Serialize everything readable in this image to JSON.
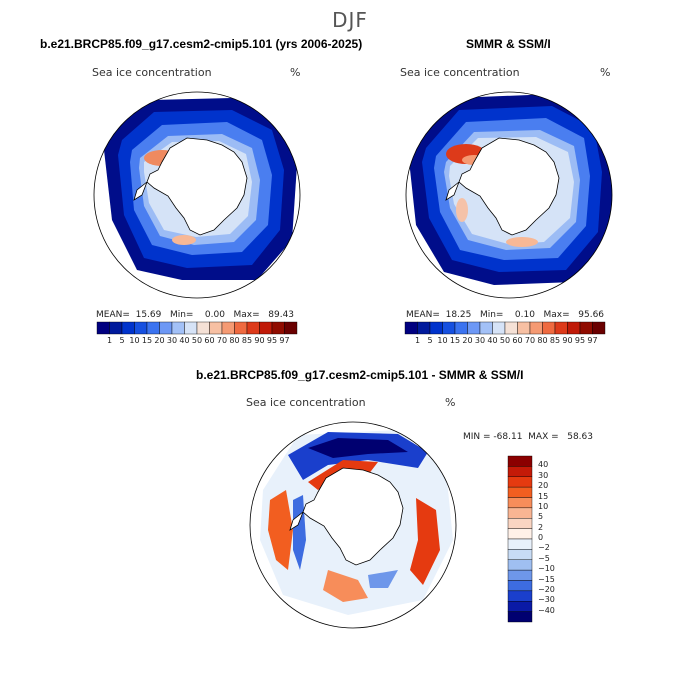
{
  "figure": {
    "title": "DJF"
  },
  "panels": [
    {
      "title": "b.e21.BRCP85.f09_g17.cesm2-cmip5.101 (yrs 2006-2025)",
      "field_label": "Sea ice concentration",
      "units": "%",
      "stats": "MEAN=  15.69   Min=    0.00   Max=   89.43"
    },
    {
      "title": "SMMR & SSM/I",
      "field_label": "Sea ice concentration",
      "units": "%",
      "stats": "MEAN=  18.25   Min=    0.10   Max=   95.66"
    },
    {
      "title": "b.e21.BRCP85.f09_g17.cesm2-cmip5.101 - SMMR & SSM/I",
      "field_label": "Sea ice concentration",
      "units": "%",
      "stats": "MIN = -68.11  MAX =   58.63"
    }
  ],
  "colorbar_abs": {
    "labels": [
      "1",
      "5",
      "10",
      "15",
      "20",
      "30",
      "40",
      "50",
      "60",
      "70",
      "80",
      "85",
      "90",
      "95",
      "97"
    ],
    "colors": [
      "#000080",
      "#001a9c",
      "#0033cc",
      "#1650e0",
      "#3b73f0",
      "#6d98f5",
      "#a3c1f7",
      "#d6e3f7",
      "#f5e1d6",
      "#f7c0a3",
      "#f59a73",
      "#ef6a40",
      "#dd3a1a",
      "#c01a08",
      "#900c00",
      "#6a0000"
    ]
  },
  "colorbar_diff": {
    "labels": [
      "40",
      "30",
      "20",
      "15",
      "10",
      "5",
      "2",
      "0",
      "−2",
      "−5",
      "−10",
      "−15",
      "−20",
      "−30",
      "−40"
    ],
    "colors": [
      "#8b0000",
      "#c41a08",
      "#e53a10",
      "#f25e20",
      "#f78d5a",
      "#f9b593",
      "#fad5c2",
      "#fff1e8",
      "#e8f1fb",
      "#c8dcf5",
      "#9fbff1",
      "#6e97ea",
      "#3d6ce0",
      "#1a3fcc",
      "#0a1aa6",
      "#000070"
    ]
  }
}
